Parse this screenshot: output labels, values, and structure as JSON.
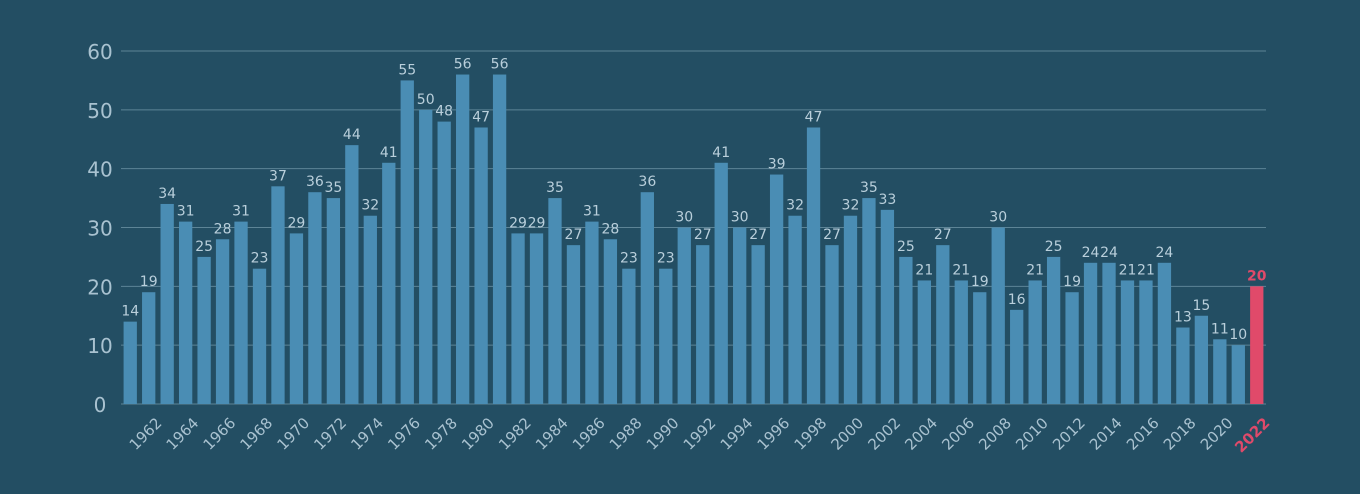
{
  "colors": {
    "background": "#234e63",
    "bar": "#4a8db4",
    "highlight": "#e04a6a",
    "gridline": "#5d8496",
    "text": "#b9cfdb",
    "tick_text": "#a9c2d0"
  },
  "chart_data": {
    "type": "bar",
    "title": "",
    "xlabel": "",
    "ylabel": "",
    "ylim": [
      0,
      60
    ],
    "yticks": [
      0,
      10,
      20,
      30,
      40,
      50,
      60
    ],
    "grid": true,
    "highlight_category": "2022",
    "categories": [
      "1961",
      "1962",
      "1963",
      "1964",
      "1965",
      "1966",
      "1967",
      "1968",
      "1969",
      "1970",
      "1971",
      "1972",
      "1973",
      "1974",
      "1975",
      "1976",
      "1977",
      "1978",
      "1979",
      "1980",
      "1981",
      "1982",
      "1983",
      "1984",
      "1985",
      "1986",
      "1987",
      "1988",
      "1989",
      "1990",
      "1991",
      "1992",
      "1993",
      "1994",
      "1995",
      "1996",
      "1997",
      "1998",
      "1999",
      "2000",
      "2001",
      "2002",
      "2003",
      "2004",
      "2005",
      "2006",
      "2007",
      "2008",
      "2009",
      "2010",
      "2011",
      "2012",
      "2013",
      "2014",
      "2015",
      "2016",
      "2017",
      "2018",
      "2019",
      "2020",
      "2021",
      "2022"
    ],
    "x_tick_labels": [
      "1962",
      "1964",
      "1966",
      "1968",
      "1970",
      "1972",
      "1974",
      "1976",
      "1978",
      "1980",
      "1982",
      "1984",
      "1986",
      "1988",
      "1990",
      "1992",
      "1994",
      "1996",
      "1998",
      "2000",
      "2002",
      "2004",
      "2006",
      "2008",
      "2010",
      "2012",
      "2014",
      "2016",
      "2018",
      "2020",
      "2022"
    ],
    "values": [
      14,
      19,
      34,
      31,
      25,
      28,
      31,
      23,
      37,
      29,
      36,
      35,
      44,
      32,
      41,
      55,
      50,
      48,
      56,
      47,
      56,
      29,
      29,
      35,
      27,
      31,
      28,
      23,
      36,
      23,
      30,
      27,
      41,
      30,
      27,
      39,
      32,
      47,
      27,
      32,
      35,
      33,
      25,
      21,
      27,
      21,
      19,
      30,
      16,
      21,
      25,
      19,
      24,
      24,
      21,
      21,
      24,
      13,
      15,
      11,
      10,
      20
    ]
  }
}
